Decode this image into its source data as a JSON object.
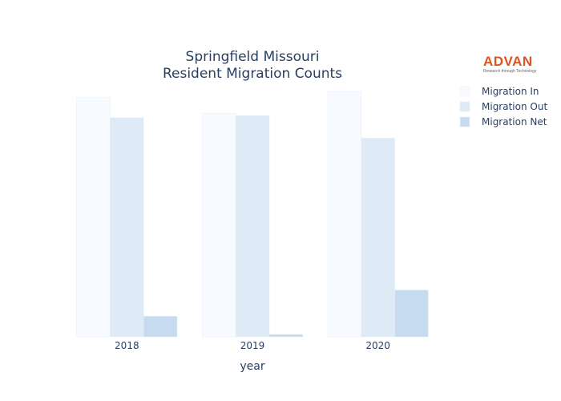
{
  "colors": {
    "series": [
      "#f7fbff",
      "#deebf7",
      "#c6dbef"
    ],
    "text": "#2a3f5f",
    "logo": "#e0541f"
  },
  "logo": {
    "name": "ADVAN",
    "tagline": "Research through Technology"
  },
  "chart_data": {
    "type": "bar",
    "title": [
      "Springfield Missouri",
      "Resident Migration Counts"
    ],
    "xlabel": "year",
    "ylabel": "",
    "categories": [
      "2018",
      "2019",
      "2020"
    ],
    "series": [
      {
        "name": "Migration In",
        "values": [
          2970,
          2770,
          3040
        ]
      },
      {
        "name": "Migration Out",
        "values": [
          2715,
          2740,
          2460
        ]
      },
      {
        "name": "Migration Net",
        "values": [
          255,
          30,
          580
        ]
      }
    ],
    "ylim": [
      0,
      3080
    ],
    "grid": false,
    "legend": "top-right"
  }
}
